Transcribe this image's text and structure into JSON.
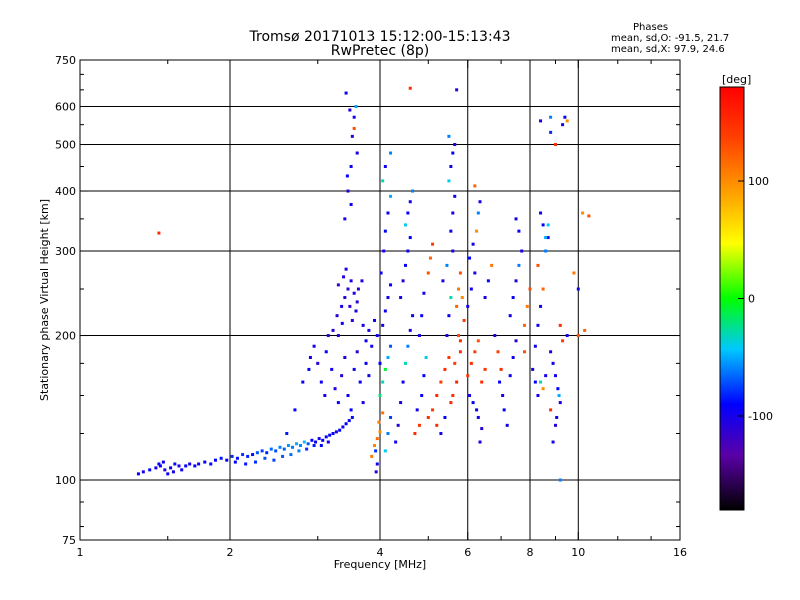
{
  "header": {
    "title_line1": "Tromsø 20171013 15:12:00-15:13:43",
    "title_line2": "RwPretec (8p)",
    "stats_title": "Phases",
    "stats_line1": "mean, sd,O: -91.5, 21.7",
    "stats_line2": "mean, sd,X:  97.9, 24.6"
  },
  "colorbar": {
    "label": "[deg]",
    "range": [
      -180,
      180
    ],
    "ticks": [
      {
        "value": 100,
        "label": "100"
      },
      {
        "value": 0,
        "label": "0"
      },
      {
        "value": -100,
        "label": "-100"
      }
    ]
  },
  "chart_data": {
    "type": "scatter",
    "title": "Tromsø 20171013 15:12:00-15:13:43",
    "subtitle": "RwPretec (8p)",
    "xlabel": "Frequency [MHz]",
    "ylabel": "Stationary phase Virtual Height [km]",
    "x_scale": "log",
    "y_scale": "log",
    "xlim": [
      1,
      16
    ],
    "ylim": [
      75,
      750
    ],
    "x_ticks": [
      {
        "value": 1,
        "label": "1"
      },
      {
        "value": 2,
        "label": "2"
      },
      {
        "value": 4,
        "label": "4"
      },
      {
        "value": 6,
        "label": "6"
      },
      {
        "value": 8,
        "label": "8"
      },
      {
        "value": 10,
        "label": "10"
      },
      {
        "value": 16,
        "label": "16"
      }
    ],
    "y_ticks": [
      {
        "value": 75,
        "label": "75"
      },
      {
        "value": 100,
        "label": "100"
      },
      {
        "value": 200,
        "label": "200"
      },
      {
        "value": 300,
        "label": "300"
      },
      {
        "value": 400,
        "label": "400"
      },
      {
        "value": 500,
        "label": "500"
      },
      {
        "value": 600,
        "label": "600"
      },
      {
        "value": 750,
        "label": "750"
      }
    ],
    "x_gridlines": [
      2,
      4,
      6,
      8,
      10
    ],
    "y_gridlines": [
      100,
      200,
      300,
      400,
      500,
      600
    ],
    "color_variable": "phase [deg]",
    "points": [
      [
        1.31,
        103,
        -95
      ],
      [
        1.34,
        104,
        -100
      ],
      [
        1.38,
        105,
        -90
      ],
      [
        1.42,
        106,
        -98
      ],
      [
        1.45,
        107,
        -92
      ],
      [
        1.48,
        105,
        -105
      ],
      [
        1.52,
        106,
        -95
      ],
      [
        1.55,
        108,
        -88
      ],
      [
        1.58,
        107,
        -100
      ],
      [
        1.6,
        105,
        -96
      ],
      [
        1.63,
        107,
        -92
      ],
      [
        1.66,
        108,
        -99
      ],
      [
        1.5,
        103,
        -95
      ],
      [
        1.54,
        104,
        -101
      ],
      [
        1.44,
        108,
        -93
      ],
      [
        1.47,
        109,
        -97
      ],
      [
        1.7,
        107,
        -90
      ],
      [
        1.73,
        108,
        -94
      ],
      [
        1.44,
        327,
        150
      ],
      [
        1.78,
        109,
        -95
      ],
      [
        1.83,
        108,
        -88
      ],
      [
        1.87,
        110,
        -92
      ],
      [
        1.92,
        111,
        -85
      ],
      [
        1.97,
        110,
        -90
      ],
      [
        2.02,
        112,
        -80
      ],
      [
        2.07,
        111,
        -86
      ],
      [
        2.12,
        113,
        -78
      ],
      [
        2.17,
        112,
        -82
      ],
      [
        2.22,
        113,
        -88
      ],
      [
        2.27,
        114,
        -70
      ],
      [
        2.32,
        115,
        -75
      ],
      [
        2.37,
        114,
        -82
      ],
      [
        2.42,
        116,
        -65
      ],
      [
        2.47,
        115,
        -72
      ],
      [
        2.52,
        117,
        -60
      ],
      [
        2.57,
        116,
        -68
      ],
      [
        2.62,
        118,
        -55
      ],
      [
        2.67,
        117,
        -62
      ],
      [
        2.72,
        119,
        -50
      ],
      [
        2.77,
        118,
        -58
      ],
      [
        2.82,
        120,
        -45
      ],
      [
        2.87,
        119,
        -70
      ],
      [
        2.92,
        121,
        -90
      ],
      [
        2.97,
        120,
        -95
      ],
      [
        3.02,
        122,
        -100
      ],
      [
        3.07,
        121,
        -92
      ],
      [
        3.12,
        123,
        -98
      ],
      [
        3.17,
        124,
        -90
      ],
      [
        3.22,
        125,
        -95
      ],
      [
        3.27,
        126,
        -100
      ],
      [
        3.32,
        127,
        -92
      ],
      [
        3.37,
        129,
        -96
      ],
      [
        3.42,
        131,
        -90
      ],
      [
        3.47,
        133,
        -94
      ],
      [
        3.52,
        135,
        -88
      ],
      [
        2.45,
        110,
        -75
      ],
      [
        2.55,
        112,
        -70
      ],
      [
        2.65,
        113,
        -65
      ],
      [
        2.75,
        115,
        -60
      ],
      [
        2.85,
        116,
        -78
      ],
      [
        2.95,
        118,
        -85
      ],
      [
        3.05,
        118,
        -90
      ],
      [
        3.15,
        120,
        -95
      ],
      [
        2.25,
        109,
        -80
      ],
      [
        2.35,
        111,
        -72
      ],
      [
        2.15,
        108,
        -85
      ],
      [
        2.05,
        109,
        -90
      ],
      [
        2.6,
        125,
        -85
      ],
      [
        2.7,
        140,
        -90
      ],
      [
        2.8,
        160,
        -95
      ],
      [
        2.9,
        180,
        -100
      ],
      [
        2.88,
        170,
        -92
      ],
      [
        2.95,
        190,
        -98
      ],
      [
        3.0,
        175,
        -105
      ],
      [
        3.05,
        160,
        -96
      ],
      [
        3.1,
        150,
        -100
      ],
      [
        3.12,
        185,
        -90
      ],
      [
        3.15,
        200,
        -110
      ],
      [
        3.2,
        170,
        -95
      ],
      [
        3.25,
        155,
        -100
      ],
      [
        3.3,
        145,
        -92
      ],
      [
        3.35,
        165,
        -105
      ],
      [
        3.4,
        180,
        -100
      ],
      [
        3.45,
        150,
        -95
      ],
      [
        3.5,
        140,
        -90
      ],
      [
        3.55,
        170,
        -100
      ],
      [
        3.6,
        185,
        -108
      ],
      [
        3.65,
        160,
        -95
      ],
      [
        3.7,
        145,
        -100
      ],
      [
        3.75,
        175,
        -92
      ],
      [
        3.8,
        165,
        -98
      ],
      [
        3.22,
        205,
        -105
      ],
      [
        3.28,
        220,
        -110
      ],
      [
        3.35,
        230,
        -100
      ],
      [
        3.4,
        240,
        -108
      ],
      [
        3.45,
        250,
        -112
      ],
      [
        3.5,
        260,
        -100
      ],
      [
        3.55,
        245,
        -105
      ],
      [
        3.6,
        235,
        -110
      ],
      [
        3.3,
        255,
        -115
      ],
      [
        3.38,
        265,
        -108
      ],
      [
        3.42,
        275,
        -100
      ],
      [
        3.48,
        230,
        -112
      ],
      [
        3.52,
        215,
        -106
      ],
      [
        3.58,
        225,
        -100
      ],
      [
        3.62,
        250,
        -110
      ],
      [
        3.68,
        260,
        -104
      ],
      [
        3.3,
        200,
        -102
      ],
      [
        3.36,
        212,
        -96
      ],
      [
        3.7,
        210,
        -100
      ],
      [
        3.75,
        195,
        -95
      ],
      [
        3.8,
        205,
        -105
      ],
      [
        3.85,
        190,
        -100
      ],
      [
        3.9,
        215,
        -92
      ],
      [
        3.95,
        200,
        -98
      ],
      [
        3.4,
        350,
        -100
      ],
      [
        3.45,
        400,
        -105
      ],
      [
        3.5,
        450,
        -95
      ],
      [
        3.52,
        520,
        -110
      ],
      [
        3.55,
        570,
        -100
      ],
      [
        3.48,
        590,
        -105
      ],
      [
        3.42,
        640,
        -95
      ],
      [
        3.58,
        600,
        -50
      ],
      [
        3.55,
        540,
        130
      ],
      [
        3.6,
        480,
        -100
      ],
      [
        3.5,
        375,
        -95
      ],
      [
        3.44,
        430,
        -90
      ],
      [
        3.95,
        108,
        -100
      ],
      [
        3.93,
        104,
        -110
      ],
      [
        3.85,
        112,
        110
      ],
      [
        3.9,
        118,
        105
      ],
      [
        3.95,
        122,
        115
      ],
      [
        4.0,
        126,
        100
      ],
      [
        3.98,
        132,
        108
      ],
      [
        4.05,
        138,
        112
      ],
      [
        3.92,
        115,
        -80
      ],
      [
        4.1,
        115,
        -40
      ],
      [
        4.15,
        125,
        -60
      ],
      [
        4.2,
        135,
        -75
      ],
      [
        4.0,
        150,
        -20
      ],
      [
        4.05,
        160,
        -30
      ],
      [
        4.1,
        170,
        -10
      ],
      [
        4.15,
        180,
        -50
      ],
      [
        4.2,
        190,
        -70
      ],
      [
        4.0,
        175,
        -90
      ],
      [
        4.05,
        210,
        -100
      ],
      [
        4.1,
        225,
        -95
      ],
      [
        4.15,
        240,
        -100
      ],
      [
        4.2,
        255,
        -90
      ],
      [
        4.02,
        270,
        -95
      ],
      [
        4.07,
        300,
        -100
      ],
      [
        4.1,
        330,
        -90
      ],
      [
        4.15,
        360,
        -95
      ],
      [
        4.2,
        390,
        -50
      ],
      [
        4.05,
        420,
        -30
      ],
      [
        4.1,
        450,
        -100
      ],
      [
        4.2,
        480,
        -60
      ],
      [
        4.3,
        120,
        -100
      ],
      [
        4.35,
        130,
        -110
      ],
      [
        4.4,
        145,
        -100
      ],
      [
        4.45,
        160,
        -95
      ],
      [
        4.5,
        175,
        -30
      ],
      [
        4.55,
        190,
        -60
      ],
      [
        4.6,
        205,
        -100
      ],
      [
        4.65,
        220,
        -95
      ],
      [
        4.4,
        240,
        -100
      ],
      [
        4.45,
        260,
        -105
      ],
      [
        4.5,
        280,
        -95
      ],
      [
        4.55,
        300,
        -100
      ],
      [
        4.6,
        320,
        -90
      ],
      [
        4.5,
        340,
        -40
      ],
      [
        4.55,
        360,
        -95
      ],
      [
        4.6,
        380,
        -100
      ],
      [
        4.65,
        400,
        -60
      ],
      [
        4.6,
        655,
        150
      ],
      [
        4.7,
        125,
        150
      ],
      [
        4.8,
        130,
        145
      ],
      [
        4.75,
        140,
        -100
      ],
      [
        4.85,
        150,
        -95
      ],
      [
        4.9,
        165,
        -90
      ],
      [
        4.95,
        180,
        -40
      ],
      [
        4.8,
        200,
        -100
      ],
      [
        4.85,
        220,
        -95
      ],
      [
        4.9,
        245,
        -100
      ],
      [
        5.0,
        270,
        130
      ],
      [
        5.05,
        290,
        120
      ],
      [
        5.1,
        310,
        140
      ],
      [
        5.0,
        135,
        150
      ],
      [
        5.1,
        140,
        145
      ],
      [
        5.2,
        150,
        155
      ],
      [
        5.3,
        160,
        140
      ],
      [
        5.4,
        170,
        150
      ],
      [
        5.5,
        180,
        145
      ],
      [
        5.6,
        150,
        150
      ],
      [
        5.7,
        160,
        160
      ],
      [
        5.55,
        145,
        155
      ],
      [
        5.65,
        175,
        140
      ],
      [
        5.8,
        185,
        150
      ],
      [
        5.75,
        200,
        135
      ],
      [
        5.2,
        130,
        150
      ],
      [
        5.3,
        125,
        -100
      ],
      [
        5.4,
        135,
        -90
      ],
      [
        5.45,
        200,
        -100
      ],
      [
        5.5,
        220,
        -95
      ],
      [
        5.55,
        240,
        -30
      ],
      [
        5.35,
        260,
        -100
      ],
      [
        5.45,
        280,
        -60
      ],
      [
        5.6,
        300,
        -100
      ],
      [
        5.55,
        330,
        -90
      ],
      [
        5.6,
        360,
        -100
      ],
      [
        5.65,
        390,
        -95
      ],
      [
        5.5,
        420,
        -40
      ],
      [
        5.55,
        450,
        -100
      ],
      [
        5.6,
        480,
        -90
      ],
      [
        5.5,
        520,
        -60
      ],
      [
        5.65,
        500,
        -100
      ],
      [
        5.7,
        650,
        -110
      ],
      [
        5.7,
        230,
        120
      ],
      [
        5.75,
        250,
        110
      ],
      [
        5.8,
        270,
        130
      ],
      [
        5.85,
        240,
        100
      ],
      [
        5.9,
        215,
        140
      ],
      [
        5.8,
        195,
        150
      ],
      [
        6.0,
        165,
        145
      ],
      [
        6.1,
        175,
        150
      ],
      [
        6.2,
        185,
        140
      ],
      [
        6.3,
        195,
        130
      ],
      [
        6.4,
        160,
        150
      ],
      [
        6.5,
        170,
        145
      ],
      [
        6.05,
        150,
        -100
      ],
      [
        6.15,
        145,
        -90
      ],
      [
        6.25,
        140,
        -95
      ],
      [
        6.3,
        135,
        -100
      ],
      [
        6.4,
        128,
        -110
      ],
      [
        6.35,
        120,
        -100
      ],
      [
        6.0,
        230,
        -100
      ],
      [
        6.1,
        250,
        -95
      ],
      [
        6.2,
        270,
        -100
      ],
      [
        6.05,
        290,
        -90
      ],
      [
        6.15,
        310,
        -100
      ],
      [
        6.25,
        330,
        100
      ],
      [
        6.3,
        360,
        -60
      ],
      [
        6.35,
        380,
        -100
      ],
      [
        6.2,
        410,
        120
      ],
      [
        6.5,
        240,
        -100
      ],
      [
        6.6,
        260,
        -95
      ],
      [
        6.7,
        280,
        110
      ],
      [
        6.8,
        200,
        -100
      ],
      [
        6.9,
        185,
        140
      ],
      [
        7.0,
        170,
        150
      ],
      [
        6.95,
        160,
        -95
      ],
      [
        7.05,
        150,
        -100
      ],
      [
        7.1,
        140,
        -90
      ],
      [
        7.2,
        130,
        -100
      ],
      [
        7.3,
        165,
        -95
      ],
      [
        7.4,
        180,
        -100
      ],
      [
        7.5,
        195,
        -110
      ],
      [
        7.3,
        220,
        -100
      ],
      [
        7.4,
        240,
        -95
      ],
      [
        7.5,
        260,
        -100
      ],
      [
        7.6,
        280,
        -60
      ],
      [
        7.7,
        300,
        -100
      ],
      [
        7.6,
        330,
        -90
      ],
      [
        7.5,
        350,
        -100
      ],
      [
        7.8,
        185,
        130
      ],
      [
        7.8,
        210,
        120
      ],
      [
        7.9,
        230,
        110
      ],
      [
        8.0,
        250,
        130
      ],
      [
        8.1,
        170,
        -100
      ],
      [
        8.2,
        160,
        -90
      ],
      [
        8.3,
        150,
        -100
      ],
      [
        8.4,
        160,
        -30
      ],
      [
        8.5,
        155,
        100
      ],
      [
        8.6,
        165,
        -100
      ],
      [
        8.2,
        190,
        -100
      ],
      [
        8.3,
        210,
        -95
      ],
      [
        8.4,
        230,
        -100
      ],
      [
        8.5,
        250,
        120
      ],
      [
        8.3,
        280,
        130
      ],
      [
        8.6,
        300,
        -60
      ],
      [
        8.7,
        320,
        -100
      ],
      [
        8.5,
        340,
        -90
      ],
      [
        8.4,
        360,
        -100
      ],
      [
        8.8,
        185,
        -100
      ],
      [
        8.9,
        175,
        -95
      ],
      [
        9.0,
        165,
        -100
      ],
      [
        9.1,
        155,
        -90
      ],
      [
        9.2,
        145,
        -100
      ],
      [
        9.0,
        130,
        -110
      ],
      [
        8.9,
        120,
        -100
      ],
      [
        9.05,
        135,
        -95
      ],
      [
        9.15,
        150,
        -50
      ],
      [
        8.8,
        140,
        150
      ],
      [
        9.2,
        210,
        150
      ],
      [
        9.3,
        195,
        140
      ],
      [
        9.3,
        550,
        -100
      ],
      [
        9.4,
        570,
        -90
      ],
      [
        9.5,
        560,
        100
      ],
      [
        9.0,
        500,
        150
      ],
      [
        8.8,
        530,
        -80
      ],
      [
        8.7,
        340,
        -40
      ],
      [
        9.2,
        100,
        -60
      ],
      [
        9.5,
        200,
        -100
      ],
      [
        10.0,
        200,
        130
      ],
      [
        10.3,
        205,
        120
      ],
      [
        10.5,
        355,
        130
      ],
      [
        10.2,
        360,
        100
      ],
      [
        10.0,
        250,
        -100
      ],
      [
        9.8,
        270,
        110
      ],
      [
        8.6,
        320,
        -50
      ],
      [
        8.4,
        560,
        -100
      ],
      [
        8.8,
        570,
        -60
      ]
    ]
  }
}
